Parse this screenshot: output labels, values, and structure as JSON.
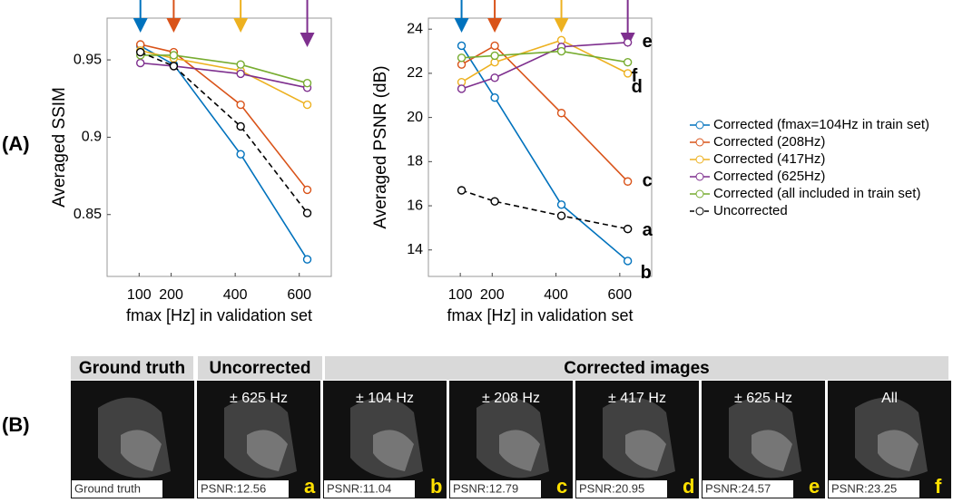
{
  "panel_labels": [
    "(A)",
    "(B)"
  ],
  "chart_data": [
    {
      "type": "line",
      "ylabel": "Averaged SSIM",
      "xlabel": "fmax [Hz] in validation set",
      "x": [
        104,
        208,
        417,
        625
      ],
      "xlim": [
        0,
        700
      ],
      "xticks": [
        100,
        200,
        400,
        600
      ],
      "ylim": [
        0.81,
        0.977
      ],
      "yticks": [
        0.85,
        0.9,
        0.95
      ],
      "series": [
        {
          "name": "Corrected (fmax=104Hz in train set)",
          "color": "#0072bd",
          "values": [
            0.959,
            0.947,
            0.889,
            0.821
          ]
        },
        {
          "name": "Corrected (208Hz)",
          "color": "#d95319",
          "values": [
            0.96,
            0.955,
            0.921,
            0.866
          ]
        },
        {
          "name": "Corrected (417Hz)",
          "color": "#edb120",
          "values": [
            0.956,
            0.951,
            0.943,
            0.921
          ]
        },
        {
          "name": "Corrected (625Hz)",
          "color": "#7e2f8e",
          "values": [
            0.948,
            0.946,
            0.941,
            0.932
          ]
        },
        {
          "name": "Corrected (all included in train set)",
          "color": "#77ac30",
          "values": [
            0.953,
            0.953,
            0.947,
            0.935
          ]
        },
        {
          "name": "Uncorrected",
          "color": "#000000",
          "dashed": true,
          "values": [
            0.955,
            0.946,
            0.907,
            0.851
          ]
        }
      ]
    },
    {
      "type": "line",
      "ylabel": "Averaged PSNR (dB)",
      "xlabel": "fmax [Hz] in validation set",
      "x": [
        104,
        208,
        417,
        625
      ],
      "xlim": [
        0,
        700
      ],
      "xticks": [
        100,
        200,
        400,
        600
      ],
      "ylim": [
        12.8,
        24.5
      ],
      "yticks": [
        14,
        16,
        18,
        20,
        22,
        24
      ],
      "end_labels": [
        "b",
        "c",
        "d",
        "e",
        "f",
        "a"
      ],
      "series": [
        {
          "name": "Corrected (fmax=104Hz in train set)",
          "color": "#0072bd",
          "values": [
            23.25,
            20.9,
            16.05,
            13.5
          ]
        },
        {
          "name": "Corrected (208Hz)",
          "color": "#d95319",
          "values": [
            22.4,
            23.25,
            20.2,
            17.1
          ]
        },
        {
          "name": "Corrected (417Hz)",
          "color": "#edb120",
          "values": [
            21.6,
            22.5,
            23.5,
            22.0
          ]
        },
        {
          "name": "Corrected (625Hz)",
          "color": "#7e2f8e",
          "values": [
            21.3,
            21.8,
            23.2,
            23.4
          ]
        },
        {
          "name": "Corrected (all included in train set)",
          "color": "#77ac30",
          "values": [
            22.7,
            22.8,
            23.0,
            22.5
          ]
        },
        {
          "name": "Uncorrected",
          "color": "#000000",
          "dashed": true,
          "values": [
            16.7,
            16.2,
            15.55,
            14.95
          ]
        }
      ]
    }
  ],
  "images": {
    "headers": [
      "Ground truth",
      "Uncorrected",
      "Corrected images"
    ],
    "tiles": [
      {
        "caption": "",
        "psnr": "Ground truth",
        "letter": ""
      },
      {
        "caption": "± 625 Hz",
        "psnr": "PSNR:12.56",
        "letter": "a"
      },
      {
        "caption": "± 104 Hz",
        "psnr": "PSNR:11.04",
        "letter": "b"
      },
      {
        "caption": "± 208 Hz",
        "psnr": "PSNR:12.79",
        "letter": "c"
      },
      {
        "caption": "± 417 Hz",
        "psnr": "PSNR:20.95",
        "letter": "d"
      },
      {
        "caption": "± 625 Hz",
        "psnr": "PSNR:24.57",
        "letter": "e"
      },
      {
        "caption": "All",
        "psnr": "PSNR:23.25",
        "letter": "f"
      }
    ]
  }
}
